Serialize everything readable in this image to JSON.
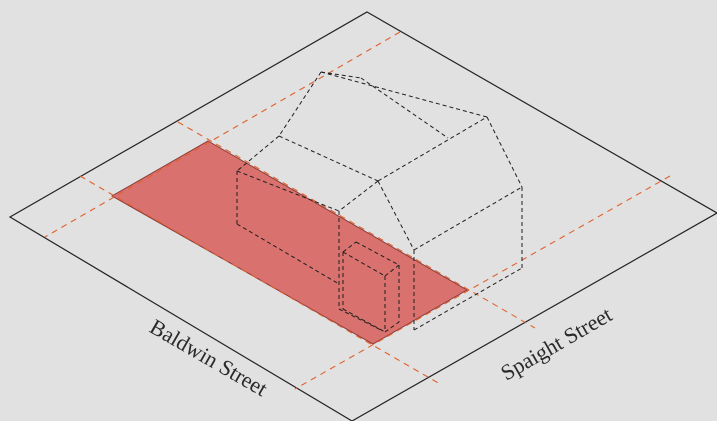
{
  "streets": {
    "baldwin": "Baldwin Street",
    "spaight": "Spaight Street"
  },
  "colors": {
    "background": "#e1e1e1",
    "parcel_outline": "#222222",
    "setback_lines": "#e0622e",
    "footprint_fill": "#d9716e",
    "footprint_edge": "#8a3a38",
    "building_dashes": "#1e1e1e"
  }
}
